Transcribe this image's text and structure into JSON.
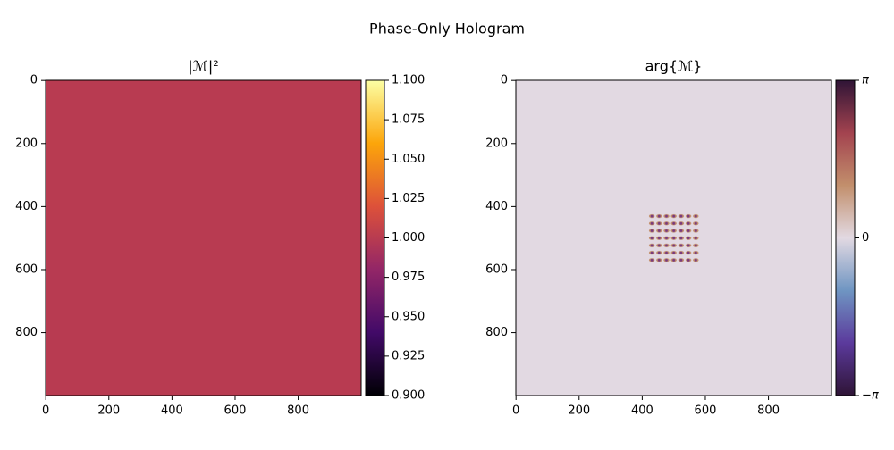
{
  "title": "Phase-Only Hologram",
  "chart_data": [
    {
      "type": "heatmap",
      "title": "|ℳ|²",
      "value": 1.0,
      "xlim": [
        -0.5,
        999.5
      ],
      "ylim": [
        999.5,
        -0.5
      ],
      "xticks": [
        0,
        200,
        400,
        600,
        800
      ],
      "yticks": [
        0,
        200,
        400,
        600,
        800
      ],
      "colorbar": {
        "colors": [
          "#000004",
          "#420a68",
          "#932667",
          "#dd513a",
          "#fca50a",
          "#fcffa4"
        ],
        "lim": [
          0.9,
          1.1
        ],
        "ticks": [
          {
            "value": 0.9,
            "label": "0.900"
          },
          {
            "value": 0.925,
            "label": "0.925"
          },
          {
            "value": 0.95,
            "label": "0.950"
          },
          {
            "value": 0.975,
            "label": "0.975"
          },
          {
            "value": 1.0,
            "label": "1.000"
          },
          {
            "value": 1.025,
            "label": "1.025"
          },
          {
            "value": 1.05,
            "label": "1.050"
          },
          {
            "value": 1.075,
            "label": "1.075"
          },
          {
            "value": 1.1,
            "label": "1.100"
          }
        ]
      }
    },
    {
      "type": "heatmap",
      "title": "arg{ℳ}",
      "value": 0,
      "xlim": [
        -0.5,
        999.5
      ],
      "ylim": [
        999.5,
        -0.5
      ],
      "xticks": [
        0,
        200,
        400,
        600,
        800
      ],
      "yticks": [
        0,
        200,
        400,
        600,
        800
      ],
      "colorbar": {
        "colors": [
          "#2f1436",
          "#5b3a9c",
          "#6f95c2",
          "#e2d9e2",
          "#c28f6c",
          "#a3434f",
          "#2f1436"
        ],
        "lim": [
          -3.14159,
          3.14159
        ],
        "ticks": [
          {
            "value": -3.14159,
            "label": "−π"
          },
          0,
          {
            "value": 3.14159,
            "label": "π"
          }
        ]
      }
    }
  ]
}
